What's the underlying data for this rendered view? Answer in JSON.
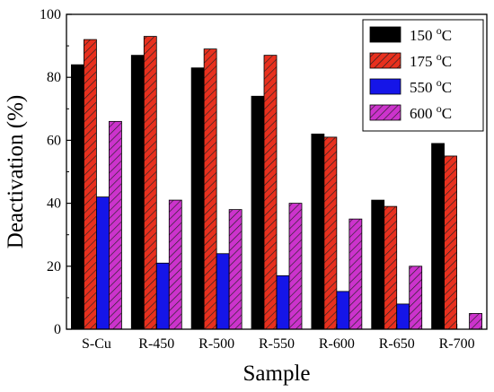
{
  "chart_data": {
    "type": "bar",
    "title": "",
    "xlabel": "Sample",
    "ylabel": "Deactivation (%)",
    "ylim": [
      0,
      100
    ],
    "yticks": [
      "0",
      "20",
      "40",
      "60",
      "80",
      "100"
    ],
    "categories": [
      "S-Cu",
      "R-450",
      "R-500",
      "R-550",
      "R-600",
      "R-650",
      "R-700"
    ],
    "grid": false,
    "legend_position": "top-right",
    "series": [
      {
        "name": "150 °C",
        "name_main": "150 ",
        "name_sup": "o",
        "name_unit": "C",
        "color": "#000000",
        "pattern": "solid",
        "values": [
          84,
          87,
          83,
          74,
          62,
          41,
          59
        ]
      },
      {
        "name": "175 °C",
        "name_main": "175 ",
        "name_sup": "o",
        "name_unit": "C",
        "color": "#e8301e",
        "pattern": "hatch",
        "values": [
          92,
          93,
          89,
          87,
          61,
          39,
          55
        ]
      },
      {
        "name": "550 °C",
        "name_main": "550 ",
        "name_sup": "o",
        "name_unit": "C",
        "color": "#1515e8",
        "pattern": "solid",
        "values": [
          42,
          21,
          24,
          17,
          12,
          8,
          0
        ]
      },
      {
        "name": "600 °C",
        "name_main": "600 ",
        "name_sup": "o",
        "name_unit": "C",
        "color": "#cc33cc",
        "pattern": "hatch",
        "values": [
          66,
          41,
          38,
          40,
          35,
          20,
          5
        ]
      }
    ]
  }
}
